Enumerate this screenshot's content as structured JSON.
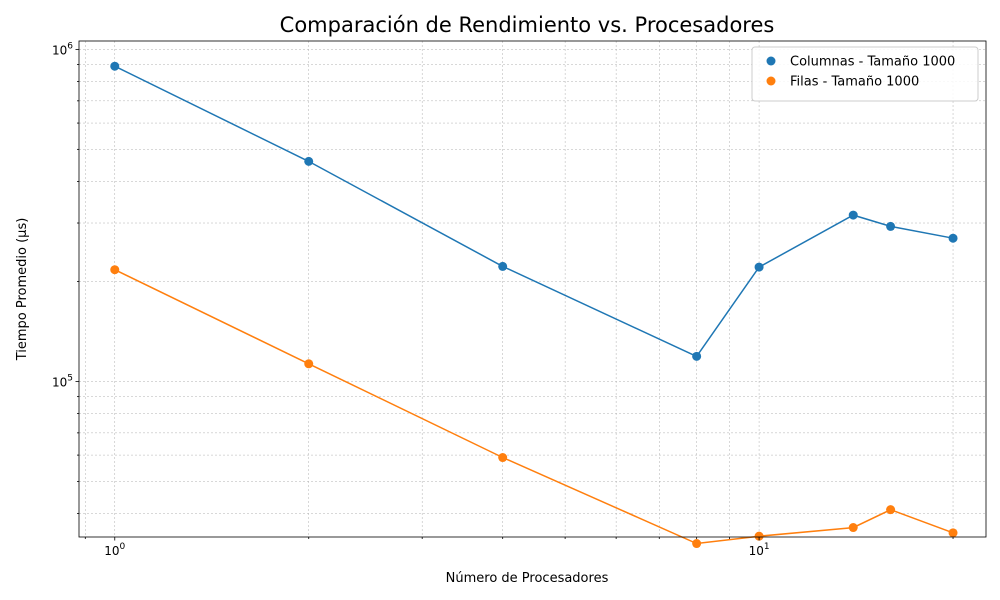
{
  "chart_data": {
    "type": "line",
    "title": "Comparación de Rendimiento vs. Procesadores",
    "xlabel": "Número de Procesadores",
    "ylabel": "Tiempo Promedio (µs)",
    "x_scale": "log",
    "y_scale": "log",
    "xlim": [
      0.88,
      22.5
    ],
    "ylim": [
      34000,
      1060000
    ],
    "grid": true,
    "legend_position": "top-right",
    "x_ticks": [
      {
        "value": 1,
        "base": "10",
        "exp": "0"
      },
      {
        "value": 10,
        "base": "10",
        "exp": "1"
      }
    ],
    "y_ticks": [
      {
        "value": 100000,
        "base": "10",
        "exp": "5"
      },
      {
        "value": 1000000,
        "base": "10",
        "exp": "6"
      }
    ],
    "series": [
      {
        "name": "Columnas - Tamaño 1000",
        "color": "#1f77b4",
        "x": [
          1,
          2,
          4,
          8,
          10,
          14,
          16,
          20
        ],
        "y": [
          890000,
          460000,
          222000,
          119000,
          221000,
          317000,
          293000,
          270000
        ]
      },
      {
        "name": "Filas - Tamaño 1000",
        "color": "#ff7f0e",
        "x": [
          1,
          2,
          4,
          8,
          10,
          14,
          16,
          20
        ],
        "y": [
          217000,
          113000,
          59000,
          32500,
          34200,
          36300,
          41100,
          35000
        ]
      }
    ]
  }
}
